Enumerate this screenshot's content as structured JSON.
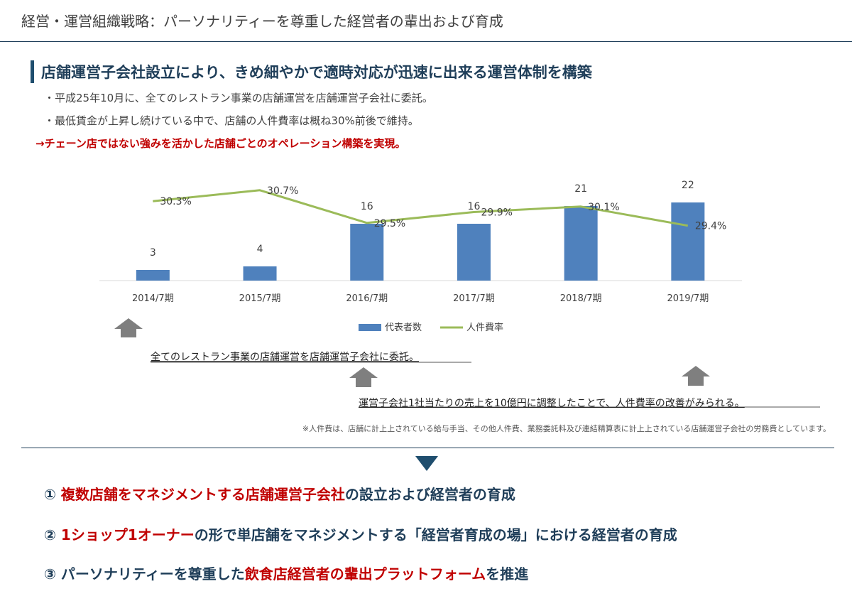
{
  "header": {
    "title": "経営・運営組織戦略：パーソナリティーを尊重した経営者の輩出および育成"
  },
  "section": {
    "headline": "店舗運営子会社設立により、きめ細やかで適時対応が迅速に出来る運営体制を構築",
    "bullets": [
      "・平成25年10月に、全てのレストラン事業の店舗運営を店舗運営子会社に委託。",
      "・最低賃金が上昇し続けている中で、店舗の人件費率は概ね30%前後で維持。"
    ],
    "conclusion": "→チェーン店ではない強みを活かした店舗ごとのオペレーション構築を実現。"
  },
  "chart_data": {
    "type": "bar+line",
    "categories": [
      "2014/7期",
      "2015/7期",
      "2016/7期",
      "2017/7期",
      "2018/7期",
      "2019/7期"
    ],
    "series": [
      {
        "name": "代表者数",
        "kind": "bar",
        "values": [
          3,
          4,
          16,
          16,
          21,
          22
        ],
        "labels": [
          "3",
          "4",
          "16",
          "16",
          "21",
          "22"
        ],
        "color": "#4f81bd"
      },
      {
        "name": "人件費率",
        "kind": "line",
        "values": [
          30.3,
          30.7,
          29.5,
          29.9,
          30.1,
          29.4
        ],
        "labels": [
          "30.3%",
          "30.7%",
          "29.5%",
          "29.9%",
          "30.1%",
          "29.4%"
        ],
        "color": "#9bbb59"
      }
    ],
    "bar_ylim": [
      0,
      30
    ],
    "line_ylim": [
      28.4,
      31.4
    ],
    "legend": "bottom-center",
    "grid": false
  },
  "annotations": {
    "note_1": "全てのレストラン事業の店舗運営を店舗運営子会社に委託。",
    "note_2": "運営子会社1社当たりの売上を10億円に調整したことで、人件費率の改善がみられる。",
    "footnote": "※人件費は、店舗に計上上されている給与手当、その他人件費、業務委託料及び連結精算表に計上上されている店舗運営子会社の労務費としています。"
  },
  "summary": {
    "items": [
      {
        "num": "①",
        "highlight": "複数店舗をマネジメントする店舗運営子会社",
        "rest": "の設立および経営者の育成"
      },
      {
        "num": "②",
        "highlight": "1ショップ1オーナー",
        "rest": "の形で単店舗をマネジメントする「経営者育成の場」における経営者の育成"
      },
      {
        "num": "③",
        "pre": "パーソナリティーを尊重した",
        "highlight": "飲食店経営者の輩出プラットフォーム",
        "rest": "を推進"
      }
    ]
  },
  "colors": {
    "navy": "#1f3e59",
    "accent_red": "#c00000",
    "bar_blue": "#4f81bd",
    "line_green": "#9bbb59",
    "arrow_gray": "#7f7f7f",
    "triangle_navy": "#1f4e6e"
  }
}
